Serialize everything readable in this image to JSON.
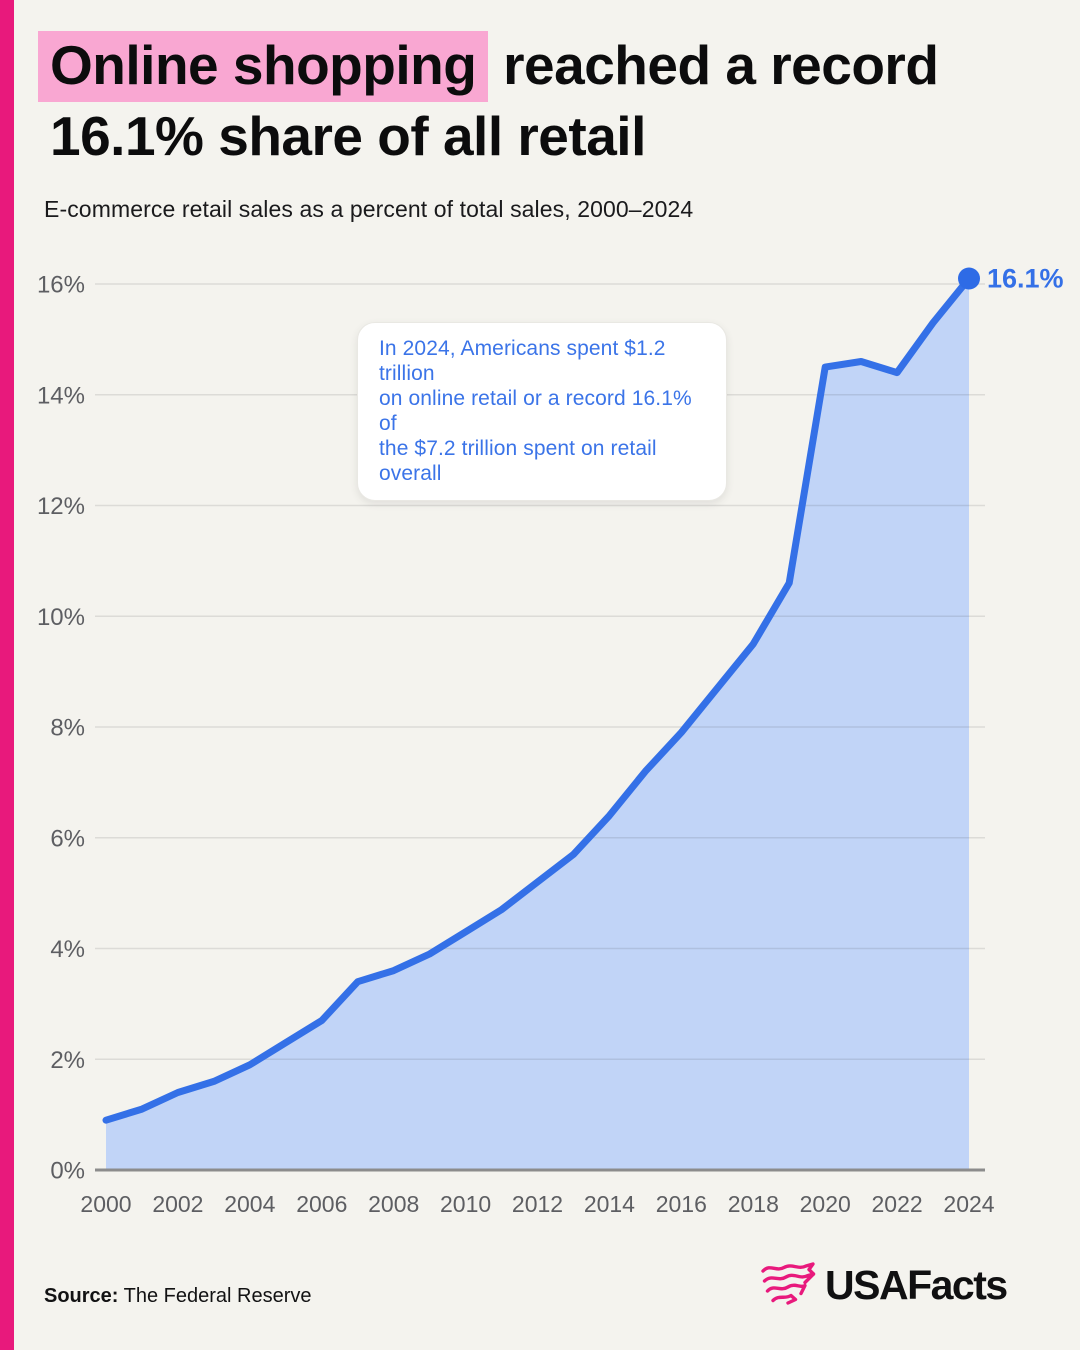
{
  "page": {
    "background_color": "#F4F3EE",
    "accent_bar_color": "#E8197C"
  },
  "header": {
    "title_highlight": "Online shopping",
    "title_rest": " reached a record",
    "title_line2": "16.1% share of all retail",
    "highlight_color": "#F9A7D2",
    "subtitle": "E-commerce retail sales as a percent of total sales, 2000–2024"
  },
  "annotation": {
    "lines": [
      "In 2024, Americans spent $1.2 trillion",
      "on online retail or a record 16.1% of",
      "the $7.2 trillion spent on retail overall"
    ],
    "text_color": "#3B74E8"
  },
  "chart_data": {
    "type": "area",
    "title": "Online shopping reached a record 16.1% share of all retail",
    "subtitle": "E-commerce retail sales as a percent of total sales, 2000–2024",
    "x": [
      2000,
      2001,
      2002,
      2003,
      2004,
      2005,
      2006,
      2007,
      2008,
      2009,
      2010,
      2011,
      2012,
      2013,
      2014,
      2015,
      2016,
      2017,
      2018,
      2019,
      2020,
      2021,
      2022,
      2023,
      2024
    ],
    "values": [
      0.9,
      1.1,
      1.4,
      1.6,
      1.9,
      2.3,
      2.7,
      3.4,
      3.6,
      3.9,
      4.3,
      4.7,
      5.2,
      5.7,
      6.4,
      7.2,
      7.9,
      8.7,
      9.5,
      10.6,
      14.5,
      14.6,
      14.4,
      15.3,
      16.1
    ],
    "ylim": [
      0,
      16
    ],
    "y_tick_step": 2,
    "y_tick_labels": [
      "0%",
      "2%",
      "4%",
      "6%",
      "8%",
      "10%",
      "12%",
      "14%",
      "16%"
    ],
    "x_tick_years": [
      2000,
      2002,
      2004,
      2006,
      2008,
      2010,
      2012,
      2014,
      2016,
      2018,
      2020,
      2022,
      2024
    ],
    "grid": true,
    "legend": "none",
    "end_point_label": "16.1%",
    "line_color": "#3470E7",
    "fill_color": "#C1D4F7",
    "marker_color": "#2E6BE6",
    "grid_color": "rgba(50,50,50,0.12)",
    "axis_line_color": "#8C8C8C"
  },
  "footer": {
    "source_label": "Source:",
    "source_text": " The Federal Reserve",
    "logo_text": "USAFacts"
  }
}
